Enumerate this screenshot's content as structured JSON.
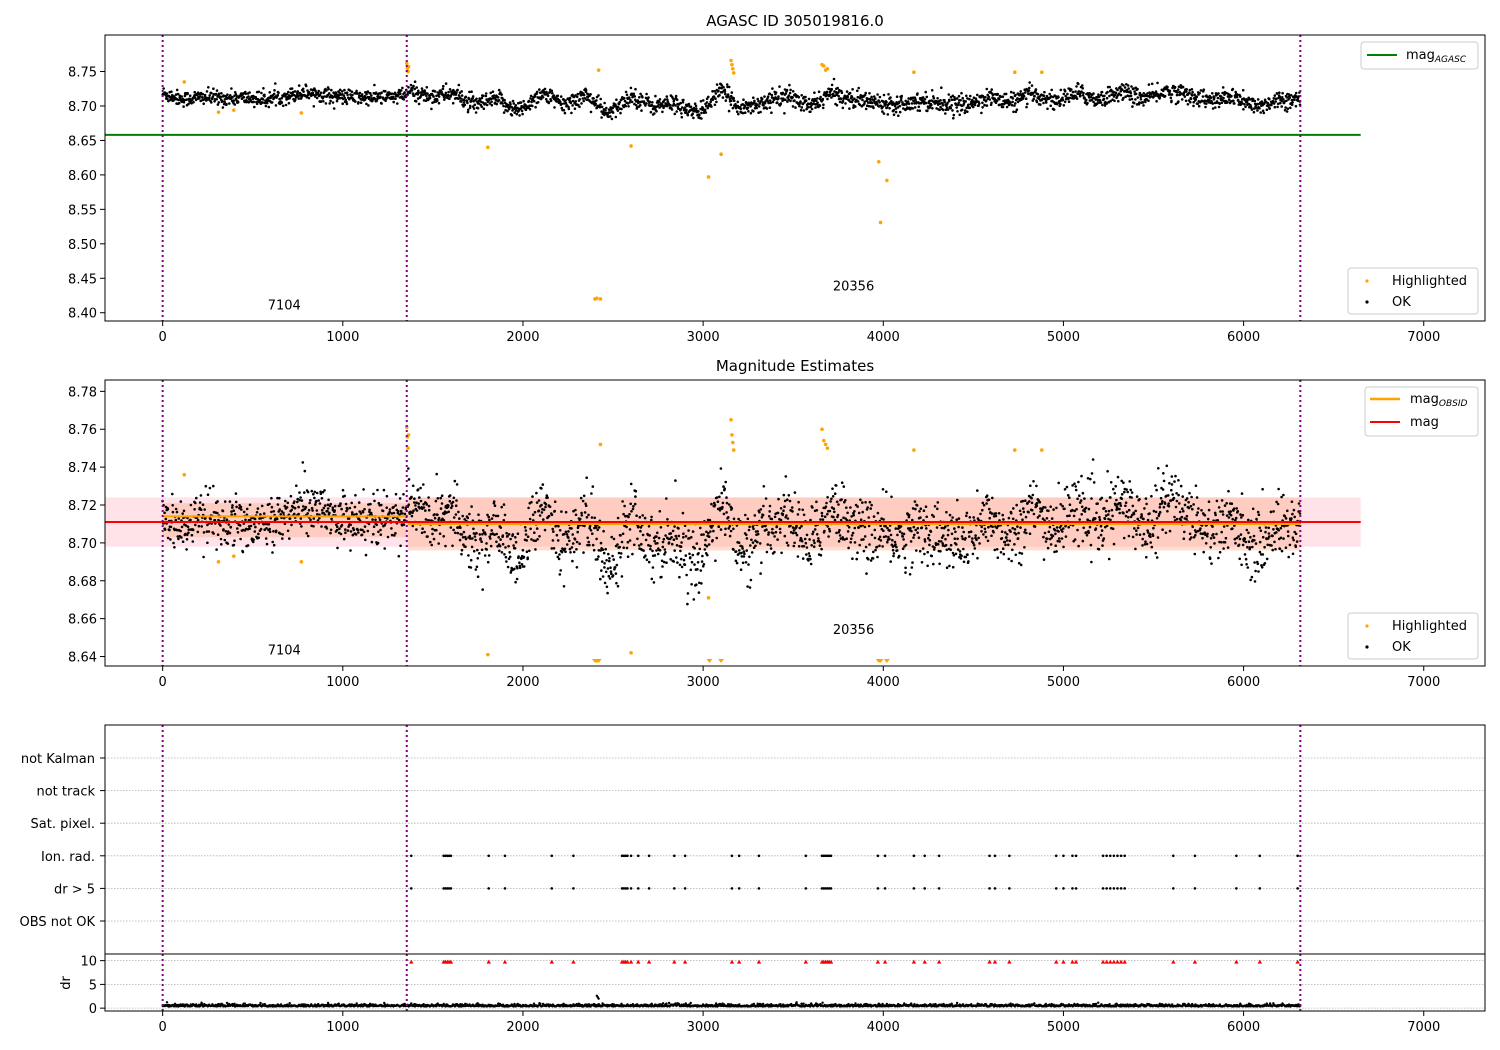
{
  "figure": {
    "title": "AGASC ID 305019816.0",
    "colors": {
      "ok": "#000000",
      "highlighted": "#ffa500",
      "mag_agasc": "#008000",
      "mag_obsid": "#ffa500",
      "mag": "#ff0000",
      "band_mag": "#ffc0cb",
      "band_obsid": "#ffa07a",
      "obs_boundary": "#800080",
      "dr_flag": "#ff0000"
    }
  },
  "chart_data": [
    {
      "id": "top",
      "type": "scatter",
      "title": "AGASC ID 305019816.0",
      "xlim": [
        -320,
        7340
      ],
      "ylim": [
        8.388,
        8.803
      ],
      "xticks": [
        0,
        1000,
        2000,
        3000,
        4000,
        5000,
        6000,
        7000
      ],
      "yticks": [
        8.4,
        8.45,
        8.5,
        8.55,
        8.6,
        8.65,
        8.7,
        8.75
      ],
      "ytick_decimals": 2,
      "grid": false,
      "obs_boundaries": [
        0,
        1355,
        6315
      ],
      "obs_labels": [
        {
          "text": "7104",
          "x": 675,
          "y": 8.405
        },
        {
          "text": "20356",
          "x": 3835,
          "y": 8.432
        }
      ],
      "hlines": [
        {
          "name": "mag_AGASC",
          "y": 8.658,
          "x": [
            -320,
            6650
          ],
          "color": "#008000"
        }
      ],
      "ok_series": {
        "name": "OK",
        "segments": [
          {
            "x": [
              0,
              1355
            ],
            "level": [
              8.718,
              8.71,
              8.713,
              8.711,
              8.712,
              8.709,
              8.714,
              8.72,
              8.716,
              8.713,
              8.712,
              8.713,
              8.715
            ],
            "noise": 0.0055
          },
          {
            "x": [
              1360,
              6315
            ],
            "level": [
              8.722,
              8.714,
              8.718,
              8.701,
              8.709,
              8.693,
              8.719,
              8.701,
              8.716,
              8.687,
              8.715,
              8.7,
              8.704,
              8.688,
              8.722,
              8.697,
              8.706,
              8.715,
              8.699,
              8.719,
              8.709,
              8.706,
              8.703,
              8.708,
              8.704,
              8.701,
              8.713,
              8.705,
              8.717,
              8.707,
              8.719,
              8.709,
              8.722,
              8.71,
              8.722,
              8.716,
              8.707,
              8.713,
              8.698,
              8.71,
              8.708
            ],
            "noise": 0.0065
          }
        ]
      },
      "highlighted": {
        "name": "Highlighted",
        "x": [
          120,
          310,
          395,
          770,
          1355,
          1358,
          1362,
          1365,
          1805,
          2400,
          2410,
          2420,
          2430,
          2600,
          3030,
          3100,
          3155,
          3160,
          3165,
          3170,
          3660,
          3670,
          3680,
          3690,
          3975,
          3985,
          4020,
          4170,
          4730,
          4880
        ],
        "y": [
          8.735,
          8.691,
          8.694,
          8.69,
          8.762,
          8.755,
          8.75,
          8.757,
          8.64,
          8.42,
          8.421,
          8.752,
          8.42,
          8.642,
          8.597,
          8.63,
          8.766,
          8.76,
          8.754,
          8.748,
          8.76,
          8.758,
          8.752,
          8.754,
          8.619,
          8.531,
          8.592,
          8.749,
          8.749,
          8.749
        ]
      },
      "legend_lines": [
        {
          "label": "mag",
          "sub": "AGASC",
          "color": "#008000"
        }
      ],
      "legend_points": [
        {
          "label": "Highlighted",
          "color": "#ffa500"
        },
        {
          "label": "OK",
          "color": "#000000"
        }
      ]
    },
    {
      "id": "mid",
      "type": "scatter",
      "title": "Magnitude Estimates",
      "xlim": [
        -320,
        7340
      ],
      "ylim": [
        8.635,
        8.786
      ],
      "xticks": [
        0,
        1000,
        2000,
        3000,
        4000,
        5000,
        6000,
        7000
      ],
      "yticks": [
        8.64,
        8.66,
        8.68,
        8.7,
        8.72,
        8.74,
        8.76,
        8.78
      ],
      "ytick_decimals": 2,
      "grid": false,
      "obs_boundaries": [
        0,
        1355,
        6315
      ],
      "obs_labels": [
        {
          "text": "7104",
          "x": 675,
          "y": 8.641
        },
        {
          "text": "20356",
          "x": 3835,
          "y": 8.652
        }
      ],
      "bands": [
        {
          "name": "mag range",
          "x": [
            -320,
            6650
          ],
          "y": [
            8.698,
            8.724
          ],
          "color": "#ffc0cb",
          "opacity": 0.45
        },
        {
          "name": "mag_OBSID range 7104",
          "x": [
            0,
            1355
          ],
          "y": [
            8.703,
            8.721
          ],
          "color": "#ffa07a",
          "opacity": 0.35
        },
        {
          "name": "mag_OBSID range 20356",
          "x": [
            1360,
            6315
          ],
          "y": [
            8.696,
            8.724
          ],
          "color": "#ffa07a",
          "opacity": 0.35
        }
      ],
      "hlines": [
        {
          "name": "mag",
          "y": 8.711,
          "x": [
            -320,
            6650
          ],
          "color": "#ff0000",
          "width": 2
        },
        {
          "name": "mag_OBSID 7104",
          "y": 8.714,
          "x": [
            0,
            1355
          ],
          "color": "#ffa500",
          "width": 2
        },
        {
          "name": "mag_OBSID 20356",
          "y": 8.71,
          "x": [
            1360,
            6315
          ],
          "color": "#ffa500",
          "width": 2
        }
      ],
      "ok_series": {
        "name": "OK",
        "segments": [
          {
            "x": [
              0,
              1355
            ],
            "level": [
              8.716,
              8.708,
              8.712,
              8.71,
              8.711,
              8.708,
              8.713,
              8.722,
              8.717,
              8.712,
              8.711,
              8.712,
              8.716
            ],
            "noise": 0.0065
          },
          {
            "x": [
              1360,
              6315
            ],
            "level": [
              8.724,
              8.712,
              8.718,
              8.7,
              8.708,
              8.69,
              8.72,
              8.7,
              8.716,
              8.684,
              8.718,
              8.698,
              8.704,
              8.686,
              8.724,
              8.694,
              8.706,
              8.716,
              8.698,
              8.72,
              8.708,
              8.705,
              8.702,
              8.708,
              8.702,
              8.7,
              8.712,
              8.704,
              8.718,
              8.706,
              8.72,
              8.708,
              8.722,
              8.708,
              8.724,
              8.716,
              8.706,
              8.712,
              8.696,
              8.71,
              8.708
            ],
            "noise": 0.0085
          }
        ]
      },
      "highlighted": {
        "name": "Highlighted",
        "x": [
          120,
          310,
          395,
          770,
          1355,
          1358,
          1362,
          1365,
          1805,
          2400,
          2410,
          2420,
          2430,
          2600,
          3030,
          3035,
          3100,
          3155,
          3160,
          3165,
          3170,
          3660,
          3670,
          3680,
          3690,
          3975,
          3985,
          4020,
          4170,
          4730,
          4880
        ],
        "y": [
          8.736,
          8.69,
          8.693,
          8.69,
          8.761,
          8.756,
          8.75,
          8.757,
          8.641,
          8.637,
          8.637,
          8.637,
          8.752,
          8.642,
          8.671,
          8.637,
          8.637,
          8.765,
          8.757,
          8.753,
          8.749,
          8.76,
          8.754,
          8.752,
          8.75,
          8.637,
          8.637,
          8.637,
          8.749,
          8.749,
          8.749
        ]
      },
      "legend_lines": [
        {
          "label": "mag",
          "sub": "OBSID",
          "color": "#ffa500"
        },
        {
          "label": "mag",
          "sub": "",
          "color": "#ff0000"
        }
      ],
      "legend_points": [
        {
          "label": "Highlighted",
          "color": "#ffa500"
        },
        {
          "label": "OK",
          "color": "#000000"
        }
      ]
    },
    {
      "id": "flags",
      "type": "scatter",
      "xlim": [
        -320,
        7340
      ],
      "xticks": [
        0,
        1000,
        2000,
        3000,
        4000,
        5000,
        6000,
        7000
      ],
      "grid": true,
      "obs_boundaries": [
        0,
        1355,
        6315
      ],
      "categories": [
        "not Kalman",
        "not track",
        "Sat. pixel.",
        "Ion. rad.",
        "dr > 5",
        "OBS not OK"
      ],
      "flag_times": [
        1380,
        1560,
        1570,
        1580,
        1590,
        1600,
        1810,
        1900,
        2160,
        2280,
        2550,
        2560,
        2570,
        2580,
        2600,
        2640,
        2700,
        2840,
        2900,
        3160,
        3200,
        3310,
        3570,
        3660,
        3670,
        3680,
        3690,
        3700,
        3710,
        3970,
        4010,
        4170,
        4230,
        4310,
        4590,
        4620,
        4700,
        4960,
        5000,
        5050,
        5070,
        5220,
        5240,
        5260,
        5280,
        5300,
        5320,
        5340,
        5610,
        5730,
        5960,
        6090,
        6300
      ],
      "flag_rows": [
        "Ion. rad.",
        "dr > 5"
      ]
    },
    {
      "id": "dr",
      "type": "scatter",
      "ylabel": "dr",
      "xlim": [
        -320,
        7340
      ],
      "ylim": [
        -0.6,
        11.4
      ],
      "xticks": [
        0,
        1000,
        2000,
        3000,
        4000,
        5000,
        6000,
        7000
      ],
      "yticks": [
        0,
        5,
        10
      ],
      "ytick_decimals": 0,
      "grid": true,
      "obs_boundaries": [
        0,
        1355,
        6315
      ],
      "dr_series": {
        "name": "dr",
        "x": [
          0,
          6315
        ],
        "level": 0.35,
        "noise": 0.25
      },
      "dr_spike": {
        "x": [
          2410,
          2415,
          2420
        ],
        "y": [
          2.6,
          2.3,
          2.0
        ]
      },
      "flag_marker_y": 9.8
    }
  ]
}
